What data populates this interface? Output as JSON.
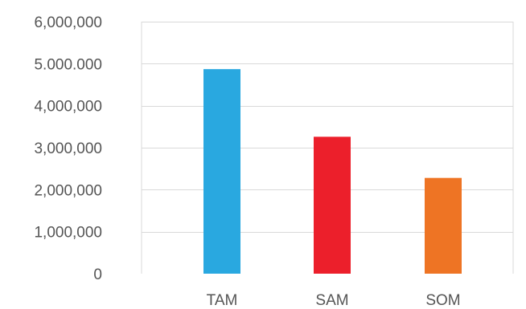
{
  "chart_data": {
    "type": "bar",
    "categories": [
      "TAM",
      "SAM",
      "SOM"
    ],
    "values": [
      4870000,
      3260000,
      2280000
    ],
    "colors": [
      "#29a8e0",
      "#ec1f2b",
      "#ee7424"
    ],
    "ylim": [
      0,
      6000000
    ],
    "y_ticks": [
      0,
      1000000,
      2000000,
      3000000,
      4000000,
      5000000,
      6000000
    ],
    "y_tick_labels": [
      "0",
      "1,000,000",
      "2,000,000",
      "3,000,000",
      "4,000,000",
      "5.000.000",
      "6,000,000"
    ],
    "title": "",
    "xlabel": "",
    "ylabel": "",
    "grid": true,
    "legend": "none"
  }
}
